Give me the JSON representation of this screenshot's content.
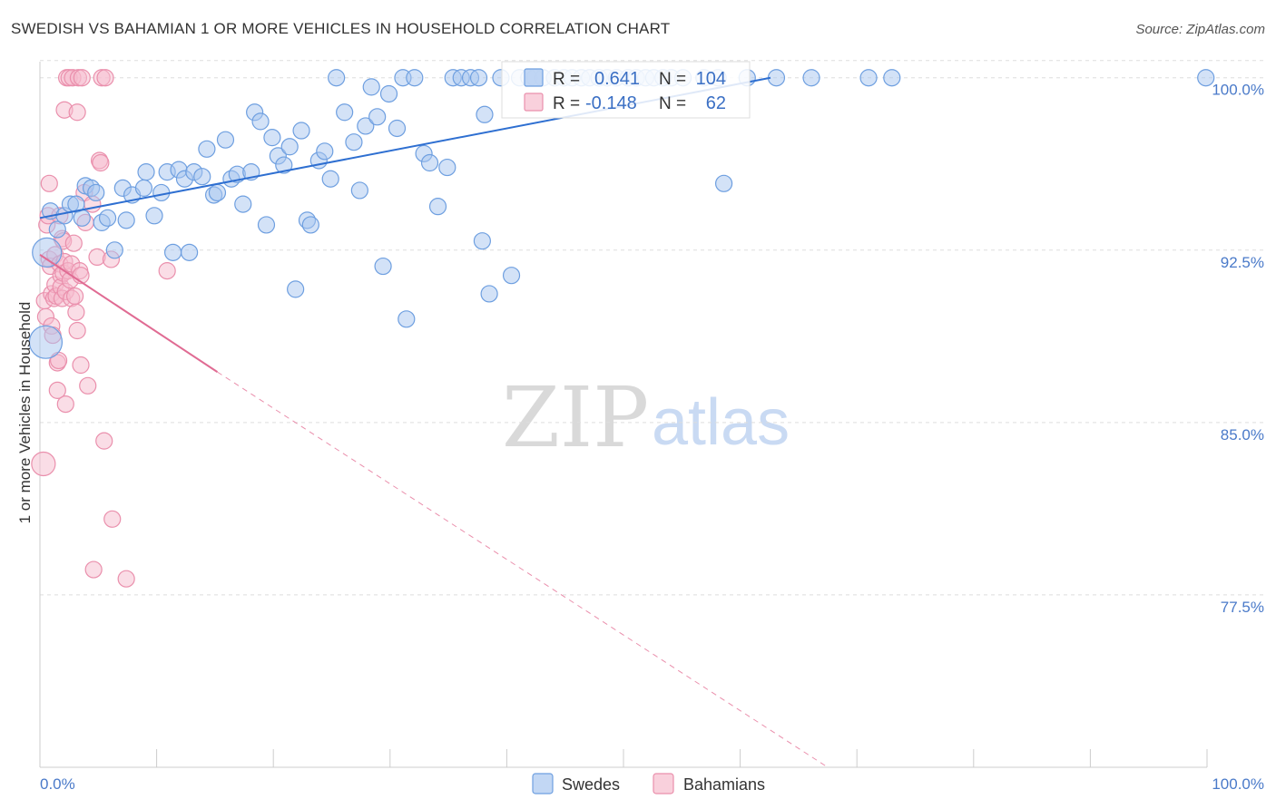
{
  "title": "SWEDISH VS BAHAMIAN 1 OR MORE VEHICLES IN HOUSEHOLD CORRELATION CHART",
  "source": "Source: ZipAtlas.com",
  "watermark": {
    "zip": "ZIP",
    "atlas": "atlas"
  },
  "colors": {
    "swedes_fill": "#a8c6f0",
    "swedes_stroke": "#6e9fe0",
    "swedes_line": "#2e6fd1",
    "bahamians_fill": "#f6bccd",
    "bahamians_stroke": "#ea8fac",
    "bahamians_line": "#e06b93",
    "grid": "#dddddd",
    "tick_label": "#4a7ac9"
  },
  "legend_box": {
    "swedes": {
      "r_label": "R =",
      "r_value": "0.641",
      "n_label": "N =",
      "n_value": "104"
    },
    "bahamians": {
      "r_label": "R =",
      "r_value": "-0.148",
      "n_label": "N =",
      "n_value": "62"
    }
  },
  "chart_data": {
    "type": "scatter",
    "title": "SWEDISH VS BAHAMIAN 1 OR MORE VEHICLES IN HOUSEHOLD CORRELATION CHART",
    "xlabel": "",
    "ylabel": "1 or more Vehicles in Household",
    "xlim": [
      0,
      100
    ],
    "ylim": [
      70.0,
      100.7
    ],
    "x_tick_labels": {
      "left": "0.0%",
      "right": "100.0%"
    },
    "y_ticks": [
      {
        "value": 100.0,
        "label": "100.0%"
      },
      {
        "value": 92.5,
        "label": "92.5%"
      },
      {
        "value": 85.0,
        "label": "85.0%"
      },
      {
        "value": 77.5,
        "label": "77.5%"
      }
    ],
    "legend": [
      "Swedes",
      "Bahamians"
    ],
    "series": [
      {
        "name": "Swedes",
        "R": 0.641,
        "N": 104,
        "trend": {
          "x0": 0,
          "y0": 93.9,
          "x1": 62.6,
          "y1": 100.0,
          "dashed_extension": false
        },
        "points": [
          [
            0.9,
            94.2
          ],
          [
            1.5,
            93.4
          ],
          [
            2.1,
            94.0
          ],
          [
            2.6,
            94.5
          ],
          [
            3.1,
            94.5
          ],
          [
            3.6,
            93.9
          ],
          [
            3.9,
            95.3
          ],
          [
            4.4,
            95.2
          ],
          [
            4.8,
            95.0
          ],
          [
            5.3,
            93.7
          ],
          [
            5.8,
            93.9
          ],
          [
            6.4,
            92.5
          ],
          [
            7.1,
            95.2
          ],
          [
            7.4,
            93.8
          ],
          [
            7.9,
            94.9
          ],
          [
            8.9,
            95.2
          ],
          [
            9.1,
            95.9
          ],
          [
            9.8,
            94.0
          ],
          [
            10.4,
            95.0
          ],
          [
            10.9,
            95.9
          ],
          [
            11.4,
            92.4
          ],
          [
            11.9,
            96.0
          ],
          [
            12.4,
            95.6
          ],
          [
            12.8,
            92.4
          ],
          [
            13.2,
            95.9
          ],
          [
            13.9,
            95.7
          ],
          [
            14.3,
            96.9
          ],
          [
            14.9,
            94.9
          ],
          [
            15.2,
            95.0
          ],
          [
            15.9,
            97.3
          ],
          [
            16.4,
            95.6
          ],
          [
            16.9,
            95.8
          ],
          [
            17.4,
            94.5
          ],
          [
            18.1,
            95.9
          ],
          [
            18.4,
            98.5
          ],
          [
            18.9,
            98.1
          ],
          [
            19.4,
            93.6
          ],
          [
            19.9,
            97.4
          ],
          [
            20.4,
            96.6
          ],
          [
            20.9,
            96.2
          ],
          [
            21.4,
            97.0
          ],
          [
            21.9,
            90.8
          ],
          [
            22.4,
            97.7
          ],
          [
            22.9,
            93.8
          ],
          [
            23.2,
            93.6
          ],
          [
            23.9,
            96.4
          ],
          [
            24.4,
            96.8
          ],
          [
            24.9,
            95.6
          ],
          [
            25.4,
            100.0
          ],
          [
            26.1,
            98.5
          ],
          [
            26.9,
            97.2
          ],
          [
            27.4,
            95.1
          ],
          [
            27.9,
            97.9
          ],
          [
            28.4,
            99.6
          ],
          [
            28.9,
            98.3
          ],
          [
            29.4,
            91.8
          ],
          [
            29.9,
            99.3
          ],
          [
            30.6,
            97.8
          ],
          [
            31.1,
            100.0
          ],
          [
            31.4,
            89.5
          ],
          [
            32.1,
            100.0
          ],
          [
            32.9,
            96.7
          ],
          [
            33.4,
            96.3
          ],
          [
            34.1,
            94.4
          ],
          [
            34.9,
            96.1
          ],
          [
            35.4,
            100.0
          ],
          [
            36.1,
            100.0
          ],
          [
            36.9,
            100.0
          ],
          [
            37.6,
            100.0
          ],
          [
            38.1,
            98.4
          ],
          [
            37.9,
            92.9
          ],
          [
            38.5,
            90.6
          ],
          [
            39.5,
            100.0
          ],
          [
            40.4,
            91.4
          ],
          [
            41.1,
            100.0
          ],
          [
            41.9,
            100.0
          ],
          [
            42.4,
            100.0
          ],
          [
            43.1,
            100.0
          ],
          [
            44.1,
            100.0
          ],
          [
            44.9,
            100.0
          ],
          [
            45.6,
            100.0
          ],
          [
            46.4,
            100.0
          ],
          [
            47.1,
            100.0
          ],
          [
            47.9,
            100.0
          ],
          [
            48.6,
            100.0
          ],
          [
            49.4,
            100.0
          ],
          [
            50.4,
            100.0
          ],
          [
            51.1,
            100.0
          ],
          [
            51.9,
            100.0
          ],
          [
            52.6,
            100.0
          ],
          [
            53.4,
            100.0
          ],
          [
            54.1,
            100.0
          ],
          [
            55.1,
            100.0
          ],
          [
            56.9,
            100.0
          ],
          [
            58.1,
            100.0
          ],
          [
            58.6,
            95.4
          ],
          [
            60.6,
            100.0
          ],
          [
            63.1,
            100.0
          ],
          [
            66.1,
            100.0
          ],
          [
            71.0,
            100.0
          ],
          [
            73.0,
            100.0
          ],
          [
            99.9,
            100.0
          ],
          [
            0.6,
            92.4
          ],
          [
            0.5,
            88.5
          ]
        ]
      },
      {
        "name": "Bahamians",
        "R": -0.148,
        "N": 62,
        "trend": {
          "x0": 0,
          "y0": 92.3,
          "x1": 15.2,
          "y1": 87.2,
          "dashed_to_x": 67.5,
          "dashed_to_y": 70.0
        },
        "points": [
          [
            0.3,
            83.2
          ],
          [
            0.4,
            90.3
          ],
          [
            0.5,
            89.6
          ],
          [
            0.6,
            93.6
          ],
          [
            0.7,
            94.0
          ],
          [
            0.8,
            95.4
          ],
          [
            0.8,
            92.1
          ],
          [
            0.9,
            91.8
          ],
          [
            1.0,
            90.6
          ],
          [
            1.0,
            89.2
          ],
          [
            1.1,
            88.8
          ],
          [
            1.2,
            90.4
          ],
          [
            1.3,
            92.3
          ],
          [
            1.3,
            91.0
          ],
          [
            1.4,
            90.5
          ],
          [
            1.5,
            87.6
          ],
          [
            1.5,
            86.4
          ],
          [
            1.6,
            87.7
          ],
          [
            1.7,
            94.0
          ],
          [
            1.7,
            91.9
          ],
          [
            1.8,
            91.4
          ],
          [
            1.8,
            90.9
          ],
          [
            1.9,
            90.4
          ],
          [
            1.9,
            93.0
          ],
          [
            2.0,
            92.9
          ],
          [
            2.0,
            91.5
          ],
          [
            2.1,
            98.6
          ],
          [
            2.1,
            92.0
          ],
          [
            2.2,
            90.7
          ],
          [
            2.2,
            85.8
          ],
          [
            2.3,
            100.0
          ],
          [
            2.4,
            91.6
          ],
          [
            2.5,
            100.0
          ],
          [
            2.6,
            91.2
          ],
          [
            2.7,
            90.4
          ],
          [
            2.7,
            91.9
          ],
          [
            2.8,
            100.0
          ],
          [
            2.9,
            92.8
          ],
          [
            3.0,
            90.5
          ],
          [
            3.1,
            89.8
          ],
          [
            3.2,
            89.0
          ],
          [
            3.2,
            98.5
          ],
          [
            3.3,
            100.0
          ],
          [
            3.4,
            91.6
          ],
          [
            3.5,
            87.5
          ],
          [
            3.5,
            91.4
          ],
          [
            3.6,
            100.0
          ],
          [
            3.8,
            95.0
          ],
          [
            3.9,
            93.7
          ],
          [
            4.1,
            86.6
          ],
          [
            4.5,
            94.5
          ],
          [
            4.6,
            78.6
          ],
          [
            4.9,
            92.2
          ],
          [
            5.1,
            96.4
          ],
          [
            5.2,
            96.3
          ],
          [
            5.3,
            100.0
          ],
          [
            5.5,
            84.2
          ],
          [
            5.6,
            100.0
          ],
          [
            6.1,
            92.1
          ],
          [
            6.2,
            80.8
          ],
          [
            7.4,
            78.2
          ],
          [
            10.9,
            91.6
          ]
        ]
      }
    ],
    "grid": true,
    "legend_position": "bottom"
  }
}
